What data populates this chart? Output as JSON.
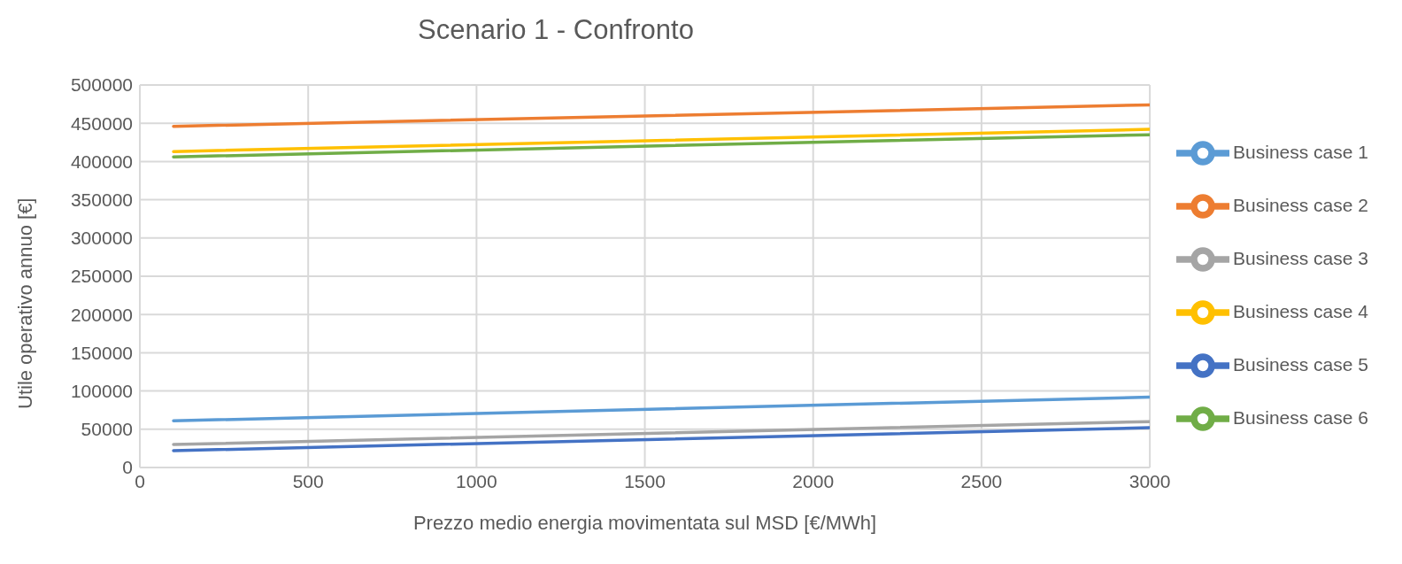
{
  "chart_data": {
    "type": "line",
    "title": "Scenario 1 - Confronto",
    "xlabel": "Prezzo medio energia movimentata sul MSD [€/MWh]",
    "ylabel": "Utile operativo annuo [€]",
    "x": [
      100,
      3000
    ],
    "series": [
      {
        "name": "Business case 1",
        "color": "#5b9bd5",
        "values": [
          61000,
          92000
        ]
      },
      {
        "name": "Business case 2",
        "color": "#ed7d31",
        "values": [
          446000,
          474000
        ]
      },
      {
        "name": "Business case 3",
        "color": "#a5a5a5",
        "values": [
          30000,
          60000
        ]
      },
      {
        "name": "Business case 4",
        "color": "#ffc000",
        "values": [
          413000,
          442000
        ]
      },
      {
        "name": "Business case 5",
        "color": "#4472c4",
        "values": [
          22000,
          52000
        ]
      },
      {
        "name": "Business case 6",
        "color": "#70ad47",
        "values": [
          406000,
          435000
        ]
      }
    ],
    "xlim": [
      0,
      3000
    ],
    "xticks": [
      0,
      500,
      1000,
      1500,
      2000,
      2500,
      3000
    ],
    "ylim": [
      0,
      500000
    ],
    "yticks": [
      0,
      50000,
      100000,
      150000,
      200000,
      250000,
      300000,
      350000,
      400000,
      450000,
      500000
    ],
    "grid": true,
    "legend": "right",
    "marker": "none",
    "line_style": "solid"
  }
}
